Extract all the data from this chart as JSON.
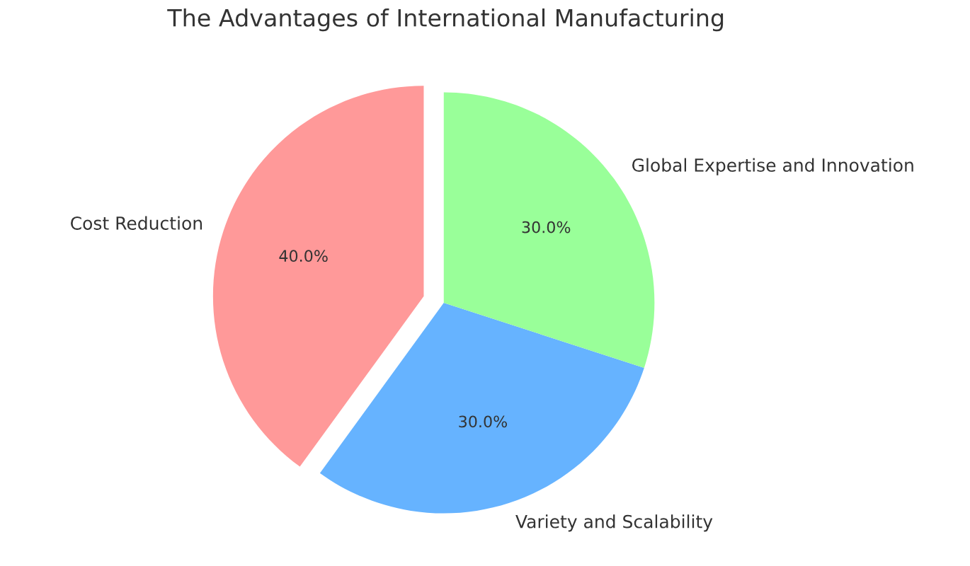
{
  "chart_data": {
    "type": "pie",
    "title": "The Advantages of International Manufacturing",
    "categories": [
      "Cost Reduction",
      "Variety and Scalability",
      "Global Expertise and Innovation"
    ],
    "values": [
      40,
      30,
      30
    ],
    "colors": [
      "#ff9999",
      "#66b3ff",
      "#99ff99"
    ],
    "value_labels": [
      "40.0%",
      "30.0%",
      "30.0%"
    ],
    "legend": false
  }
}
